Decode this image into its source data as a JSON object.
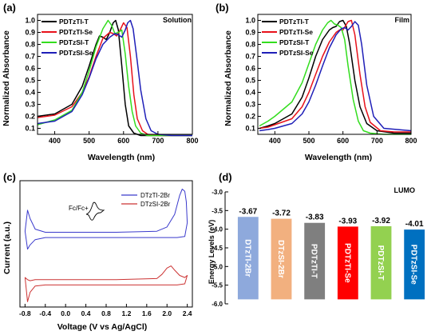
{
  "chart_data": [
    {
      "panel_label": "(a)",
      "type": "line",
      "annotation": "Solution",
      "xlabel": "Wavelength (nm)",
      "ylabel": "Normalized Absorbance",
      "xlim": [
        350,
        800
      ],
      "ylim": [
        0.05,
        1.05
      ],
      "xticks": [
        400,
        500,
        600,
        700,
        800
      ],
      "yticks": [
        0.1,
        0.2,
        0.3,
        0.4,
        0.5,
        0.6,
        0.7,
        0.8,
        0.9,
        1.0
      ],
      "legend_position": "top-left",
      "series": [
        {
          "name": "PDTzTI-T",
          "color": "#000000",
          "x": [
            350,
            400,
            450,
            480,
            500,
            520,
            530,
            540,
            550,
            560,
            570,
            577,
            585,
            595,
            605,
            615,
            630,
            650,
            680,
            720,
            760,
            800
          ],
          "y": [
            0.2,
            0.22,
            0.3,
            0.45,
            0.62,
            0.8,
            0.87,
            0.86,
            0.84,
            0.9,
            0.98,
            1.0,
            0.92,
            0.62,
            0.3,
            0.12,
            0.06,
            0.04,
            0.04,
            0.04,
            0.04,
            0.04
          ]
        },
        {
          "name": "PDTzTI-Se",
          "color": "#e8121b",
          "x": [
            350,
            400,
            450,
            480,
            500,
            520,
            540,
            560,
            570,
            580,
            590,
            600,
            610,
            620,
            630,
            640,
            655,
            670,
            700,
            740,
            800
          ],
          "y": [
            0.19,
            0.21,
            0.28,
            0.4,
            0.53,
            0.7,
            0.85,
            0.9,
            0.89,
            0.87,
            0.92,
            0.98,
            0.94,
            0.7,
            0.38,
            0.18,
            0.08,
            0.05,
            0.04,
            0.04,
            0.04
          ]
        },
        {
          "name": "PDTzSI-T",
          "color": "#33dd1e",
          "x": [
            350,
            400,
            450,
            480,
            500,
            520,
            540,
            555,
            565,
            575,
            585,
            595,
            605,
            615,
            625,
            635,
            650,
            670,
            700,
            740,
            800
          ],
          "y": [
            0.13,
            0.17,
            0.25,
            0.4,
            0.58,
            0.78,
            0.93,
            1.0,
            0.96,
            0.89,
            0.9,
            0.92,
            0.72,
            0.45,
            0.24,
            0.12,
            0.06,
            0.04,
            0.04,
            0.04,
            0.04
          ]
        },
        {
          "name": "PDTzSI-Se",
          "color": "#1f1fb8",
          "x": [
            350,
            400,
            450,
            480,
            500,
            520,
            540,
            560,
            575,
            585,
            595,
            605,
            612,
            620,
            628,
            638,
            650,
            665,
            680,
            700,
            740,
            800
          ],
          "y": [
            0.14,
            0.16,
            0.24,
            0.38,
            0.52,
            0.68,
            0.8,
            0.86,
            0.89,
            0.88,
            0.86,
            0.92,
            0.98,
            1.0,
            0.93,
            0.7,
            0.42,
            0.18,
            0.08,
            0.05,
            0.04,
            0.04
          ]
        }
      ]
    },
    {
      "panel_label": "(b)",
      "type": "line",
      "annotation": "Film",
      "xlabel": "Wavelength (nm)",
      "ylabel": "Normalized Absorbance",
      "xlim": [
        350,
        800
      ],
      "ylim": [
        0.05,
        1.05
      ],
      "xticks": [
        400,
        500,
        600,
        700,
        800
      ],
      "yticks": [
        0.1,
        0.2,
        0.3,
        0.4,
        0.5,
        0.6,
        0.7,
        0.8,
        0.9,
        1.0
      ],
      "legend_position": "top-left",
      "series": [
        {
          "name": "PDTzTI-T",
          "color": "#000000",
          "x": [
            355,
            380,
            400,
            450,
            480,
            500,
            520,
            540,
            560,
            570,
            580,
            590,
            600,
            610,
            620,
            635,
            650,
            670,
            700,
            750,
            800
          ],
          "y": [
            0.1,
            0.12,
            0.14,
            0.22,
            0.36,
            0.52,
            0.7,
            0.84,
            0.92,
            0.94,
            0.95,
            0.99,
            1.0,
            0.95,
            0.8,
            0.5,
            0.28,
            0.14,
            0.08,
            0.06,
            0.06
          ]
        },
        {
          "name": "PDTzTI-Se",
          "color": "#e8121b",
          "x": [
            355,
            380,
            400,
            450,
            480,
            500,
            520,
            540,
            560,
            580,
            590,
            600,
            615,
            625,
            635,
            650,
            665,
            680,
            710,
            750,
            800
          ],
          "y": [
            0.1,
            0.11,
            0.13,
            0.18,
            0.28,
            0.4,
            0.55,
            0.7,
            0.82,
            0.9,
            0.92,
            0.92,
            0.99,
            1.0,
            0.88,
            0.55,
            0.28,
            0.15,
            0.08,
            0.07,
            0.07
          ]
        },
        {
          "name": "PDTzSI-T",
          "color": "#33dd1e",
          "x": [
            355,
            380,
            400,
            450,
            480,
            500,
            520,
            540,
            555,
            565,
            575,
            585,
            595,
            605,
            615,
            630,
            645,
            660,
            680,
            720,
            800
          ],
          "y": [
            0.12,
            0.16,
            0.2,
            0.32,
            0.48,
            0.64,
            0.8,
            0.92,
            0.98,
            1.0,
            0.97,
            0.96,
            0.94,
            0.84,
            0.62,
            0.34,
            0.16,
            0.08,
            0.06,
            0.05,
            0.05
          ]
        },
        {
          "name": "PDTzSI-Se",
          "color": "#1f1fb8",
          "x": [
            355,
            380,
            400,
            450,
            480,
            500,
            520,
            540,
            560,
            580,
            595,
            605,
            615,
            625,
            635,
            645,
            655,
            670,
            690,
            720,
            800
          ],
          "y": [
            0.08,
            0.09,
            0.1,
            0.14,
            0.22,
            0.32,
            0.46,
            0.62,
            0.77,
            0.88,
            0.93,
            0.94,
            0.92,
            0.95,
            0.99,
            0.96,
            0.8,
            0.46,
            0.2,
            0.1,
            0.08
          ]
        }
      ]
    },
    {
      "panel_label": "(c)",
      "type": "line",
      "xlabel": "Voltage (V vs Ag/AgCl)",
      "ylabel": "Current (a.u.)",
      "xlim": [
        -0.9,
        2.5
      ],
      "xticks": [
        -0.8,
        -0.4,
        0.0,
        0.4,
        0.8,
        1.2,
        1.6,
        2.0,
        2.4
      ],
      "inset_label": "Fc/Fc+",
      "legend_position": "top-right",
      "series": [
        {
          "name": "DTzTI-2Br",
          "color": "#3a3acc",
          "x": [
            -0.8,
            -0.75,
            -0.7,
            -0.6,
            -0.4,
            0.0,
            1.0,
            1.8,
            2.0,
            2.15,
            2.25,
            2.3,
            2.35,
            2.38,
            2.4,
            2.35,
            2.2,
            2.0,
            1.5,
            0.5,
            0.0,
            -0.4,
            -0.6,
            -0.7,
            -0.75,
            -0.8
          ],
          "y": [
            3.6,
            4.6,
            4.2,
            3.7,
            3.55,
            3.55,
            3.55,
            3.6,
            3.8,
            4.4,
            5.3,
            5.6,
            5.5,
            5.0,
            4.0,
            3.35,
            3.3,
            3.3,
            3.3,
            3.3,
            3.3,
            3.3,
            3.2,
            2.95,
            2.75,
            3.6
          ]
        },
        {
          "name": "DTzSI-2Br",
          "color": "#cc3333",
          "x": [
            -0.8,
            -0.75,
            -0.7,
            -0.6,
            -0.4,
            0.0,
            1.0,
            1.8,
            1.9,
            2.0,
            2.08,
            2.15,
            2.25,
            2.35,
            2.4,
            2.35,
            2.2,
            2.0,
            1.5,
            0.5,
            0.0,
            -0.4,
            -0.6,
            -0.7,
            -0.75,
            -0.8
          ],
          "y": [
            1.4,
            1.3,
            1.25,
            1.3,
            1.3,
            1.3,
            1.3,
            1.35,
            1.55,
            1.85,
            1.95,
            1.75,
            1.5,
            1.4,
            1.5,
            1.1,
            1.05,
            1.05,
            1.05,
            1.05,
            1.05,
            1.05,
            1.0,
            0.7,
            0.25,
            1.4
          ]
        }
      ]
    },
    {
      "panel_label": "(d)",
      "type": "bar",
      "ylabel": "Energy Levels (eV)",
      "ylim": [
        -6.0,
        -3.0
      ],
      "yticks": [
        -3.0,
        -3.5,
        -4.0,
        -4.5,
        -5.0,
        -5.5,
        -6.0
      ],
      "ytick_labels": [
        "-3.0",
        "-3.5",
        "-4.0",
        "-4.5",
        "-5.0",
        "-5.5",
        "-6.0"
      ],
      "annotation": "LUMO",
      "categories": [
        "DTzTI-2Br",
        "DTzSI-2Br",
        "PDTzTI-T",
        "PDTzTI-Se",
        "PDTzSI-T",
        "PDTzSI-Se"
      ],
      "values": [
        -3.67,
        -3.72,
        -3.83,
        -3.93,
        -3.92,
        -4.01
      ],
      "value_labels": [
        "-3.67",
        "-3.72",
        "-3.83",
        "-3.93",
        "-3.92",
        "-4.01"
      ],
      "bar_bottom": -5.88,
      "colors": [
        "#8ea9dc",
        "#f2b07f",
        "#7f7f7f",
        "#ff0000",
        "#93d150",
        "#0070c0"
      ]
    }
  ]
}
